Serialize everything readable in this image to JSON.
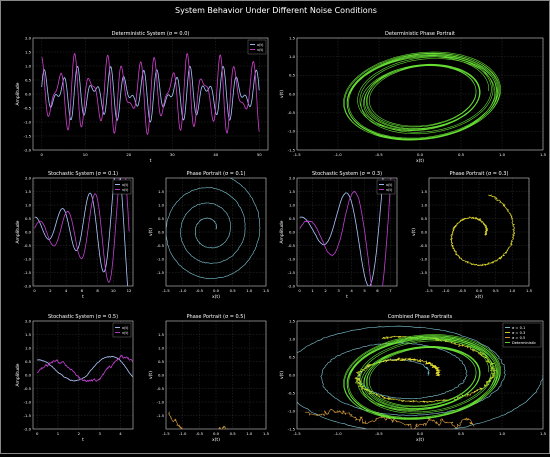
{
  "suptitle": "System Behavior Under Different Noise Conditions",
  "colors": {
    "x_det": "#a8c8ff",
    "v_det": "#d040d0",
    "x_stoch": "#b0c8ff",
    "v_stoch": "#c040d0",
    "phase_det": "#66dd33",
    "phase_01": "#7fc8d8",
    "phase_03": "#e8e030",
    "phase_05": "#e0a040"
  },
  "chart_data": [
    {
      "id": "p1",
      "type": "line",
      "title": "Deterministic System (σ = 0.0)",
      "xlabel": "t",
      "ylabel": "Amplitude",
      "xlim": [
        -2,
        52
      ],
      "ylim": [
        -2.0,
        2.0
      ],
      "xticks": [
        0,
        10,
        20,
        30,
        40,
        50
      ],
      "yticks": [
        -2.0,
        -1.5,
        -1.0,
        -0.5,
        0.0,
        0.5,
        1.0,
        1.5,
        2.0
      ],
      "series": [
        {
          "name": "x(t)",
          "style": "x_det"
        },
        {
          "name": "v(t)",
          "style": "v_det"
        }
      ],
      "legend": "top-right",
      "grid": true
    },
    {
      "id": "p2",
      "type": "line",
      "title": "Deterministic Phase Portrait",
      "xlabel": "x(t)",
      "ylabel": "v(t)",
      "xlim": [
        -1.5,
        1.5
      ],
      "ylim": [
        -1.5,
        1.5
      ],
      "xticks": [
        -1.5,
        -1.0,
        -0.5,
        0.0,
        0.5,
        1.0,
        1.5
      ],
      "yticks": [
        -1.5,
        -1.0,
        -0.5,
        0.0,
        0.5,
        1.0,
        1.5
      ],
      "series": [
        {
          "style": "phase_det"
        }
      ],
      "grid": true
    },
    {
      "id": "p3",
      "type": "line",
      "title": "Stochastic System (σ = 0.1)",
      "xlabel": "t",
      "ylabel": "Amplitude",
      "xlim": [
        -0.2,
        12.5
      ],
      "ylim": [
        -2.0,
        2.0
      ],
      "xticks": [
        0,
        2,
        4,
        6,
        8,
        10,
        12
      ],
      "yticks": [
        -2.0,
        -1.5,
        -1.0,
        -0.5,
        0.0,
        0.5,
        1.0,
        1.5,
        2.0
      ],
      "series": [
        {
          "name": "x(t)",
          "style": "x_stoch"
        },
        {
          "name": "v(t)",
          "style": "v_stoch"
        }
      ],
      "legend": "top-right",
      "grid": true
    },
    {
      "id": "p4",
      "type": "line",
      "title": "Phase Portrait (σ = 0.1)",
      "xlabel": "x(t)",
      "ylabel": "v(t)",
      "xlim": [
        -1.5,
        1.5
      ],
      "ylim": [
        -2.0,
        2.0
      ],
      "xticks": [
        -1.5,
        -1.0,
        -0.5,
        0.0,
        0.5,
        1.0,
        1.5
      ],
      "yticks": [
        -1.5,
        -1.0,
        -0.5,
        0.0,
        0.5,
        1.0,
        1.5
      ],
      "series": [
        {
          "style": "phase_01"
        }
      ],
      "grid": true
    },
    {
      "id": "p5",
      "type": "line",
      "title": "Stochastic System (σ = 0.3)",
      "xlabel": "t",
      "ylabel": "Amplitude",
      "xlim": [
        -0.2,
        7.5
      ],
      "ylim": [
        -2.0,
        2.0
      ],
      "xticks": [
        0,
        1,
        2,
        3,
        4,
        5,
        6,
        7
      ],
      "yticks": [
        -2.0,
        -1.5,
        -1.0,
        -0.5,
        0.0,
        0.5,
        1.0,
        1.5,
        2.0
      ],
      "series": [
        {
          "name": "x(t)",
          "style": "x_stoch"
        },
        {
          "name": "v(t)",
          "style": "v_stoch"
        }
      ],
      "legend": "top-right",
      "grid": true
    },
    {
      "id": "p6",
      "type": "line",
      "title": "Phase Portrait (σ = 0.3)",
      "xlabel": "x(t)",
      "ylabel": "v(t)",
      "xlim": [
        -1.5,
        1.5
      ],
      "ylim": [
        -2.0,
        2.0
      ],
      "xticks": [
        -1.5,
        -1.0,
        -0.5,
        0.0,
        0.5,
        1.0,
        1.5
      ],
      "yticks": [
        -1.5,
        -1.0,
        -0.5,
        0.0,
        0.5,
        1.0,
        1.5
      ],
      "series": [
        {
          "style": "phase_03"
        }
      ],
      "grid": true
    },
    {
      "id": "p7",
      "type": "line",
      "title": "Stochastic System (σ = 0.5)",
      "xlabel": "t",
      "ylabel": "Amplitude",
      "xlim": [
        -0.2,
        4.6
      ],
      "ylim": [
        -2.0,
        2.0
      ],
      "xticks": [
        0,
        1,
        2,
        3,
        4
      ],
      "yticks": [
        -2.0,
        -1.5,
        -1.0,
        -0.5,
        0.0,
        0.5,
        1.0,
        1.5,
        2.0
      ],
      "series": [
        {
          "name": "x(t)",
          "style": "x_stoch"
        },
        {
          "name": "v(t)",
          "style": "v_stoch"
        }
      ],
      "legend": "top-right",
      "grid": true
    },
    {
      "id": "p8",
      "type": "line",
      "title": "Phase Portrait (σ = 0.5)",
      "xlabel": "x(t)",
      "ylabel": "v(t)",
      "xlim": [
        -1.5,
        1.5
      ],
      "ylim": [
        -2.0,
        2.0
      ],
      "xticks": [
        -1.5,
        -1.0,
        -0.5,
        0.0,
        0.5,
        1.0,
        1.5
      ],
      "yticks": [
        -1.5,
        -1.0,
        -0.5,
        0.0,
        0.5,
        1.0,
        1.5
      ],
      "series": [
        {
          "style": "phase_05"
        }
      ],
      "grid": true
    },
    {
      "id": "p9",
      "type": "line",
      "title": "Combined Phase Portraits",
      "xlabel": "x(t)",
      "ylabel": "v(t)",
      "xlim": [
        -1.5,
        1.5
      ],
      "ylim": [
        -1.5,
        1.5
      ],
      "xticks": [
        -1.5,
        -1.0,
        -0.5,
        0.0,
        0.5,
        1.0,
        1.5
      ],
      "yticks": [
        -1.5,
        -1.0,
        -0.5,
        0.0,
        0.5,
        1.0,
        1.5
      ],
      "series": [
        {
          "name": "σ = 0.1",
          "style": "phase_01"
        },
        {
          "name": "σ = 0.3",
          "style": "phase_03"
        },
        {
          "name": "σ = 0.5",
          "style": "phase_05"
        },
        {
          "name": "Deterministic",
          "style": "phase_det"
        }
      ],
      "legend": "top-right",
      "grid": true
    }
  ]
}
